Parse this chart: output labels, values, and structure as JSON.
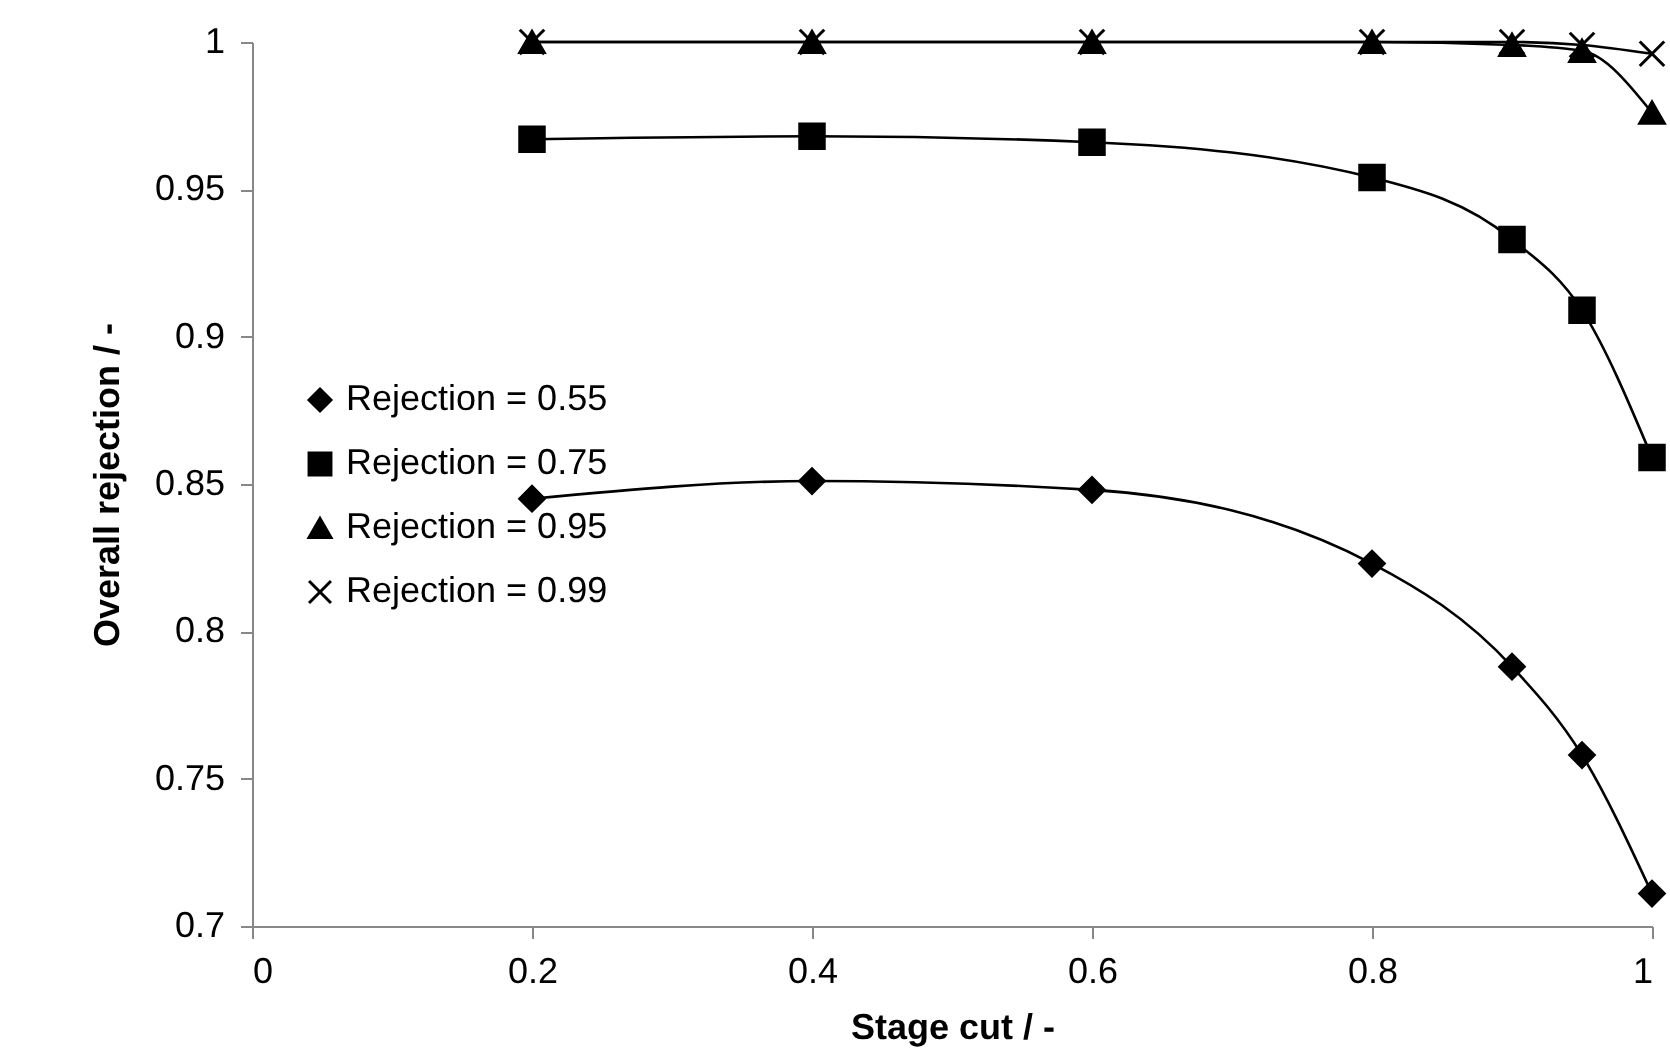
{
  "chart_data": {
    "type": "line",
    "xlabel": "Stage cut / -",
    "ylabel": "Overall rejection / -",
    "x": [
      0.2,
      0.4,
      0.6,
      0.8,
      0.9,
      0.95,
      1.0
    ],
    "xlim": [
      0,
      1
    ],
    "xticks": [
      0,
      0.2,
      0.4,
      0.6,
      0.8,
      1
    ],
    "ylim": [
      0.7,
      1
    ],
    "yticks": [
      0.7,
      0.75,
      0.8,
      0.85,
      0.9,
      0.95,
      1
    ],
    "grid": false,
    "legend": "left",
    "series": [
      {
        "name": "Rejection = 0.55",
        "color": "#000000",
        "marker": "diamond",
        "values": [
          0.845,
          0.851,
          0.848,
          0.823,
          0.788,
          0.758,
          0.711
        ]
      },
      {
        "name": "Rejection = 0.75",
        "color": "#000000",
        "marker": "square",
        "values": [
          0.967,
          0.968,
          0.966,
          0.954,
          0.933,
          0.909,
          0.859
        ]
      },
      {
        "name": "Rejection = 0.95",
        "color": "#000000",
        "marker": "triangle",
        "values": [
          1.0,
          1.0,
          1.0,
          1.0,
          0.999,
          0.997,
          0.976
        ]
      },
      {
        "name": "Rejection = 0.99",
        "color": "#000000",
        "marker": "cross",
        "values": [
          1.0,
          1.0,
          1.0,
          1.0,
          1.0,
          0.999,
          0.996
        ]
      }
    ]
  }
}
